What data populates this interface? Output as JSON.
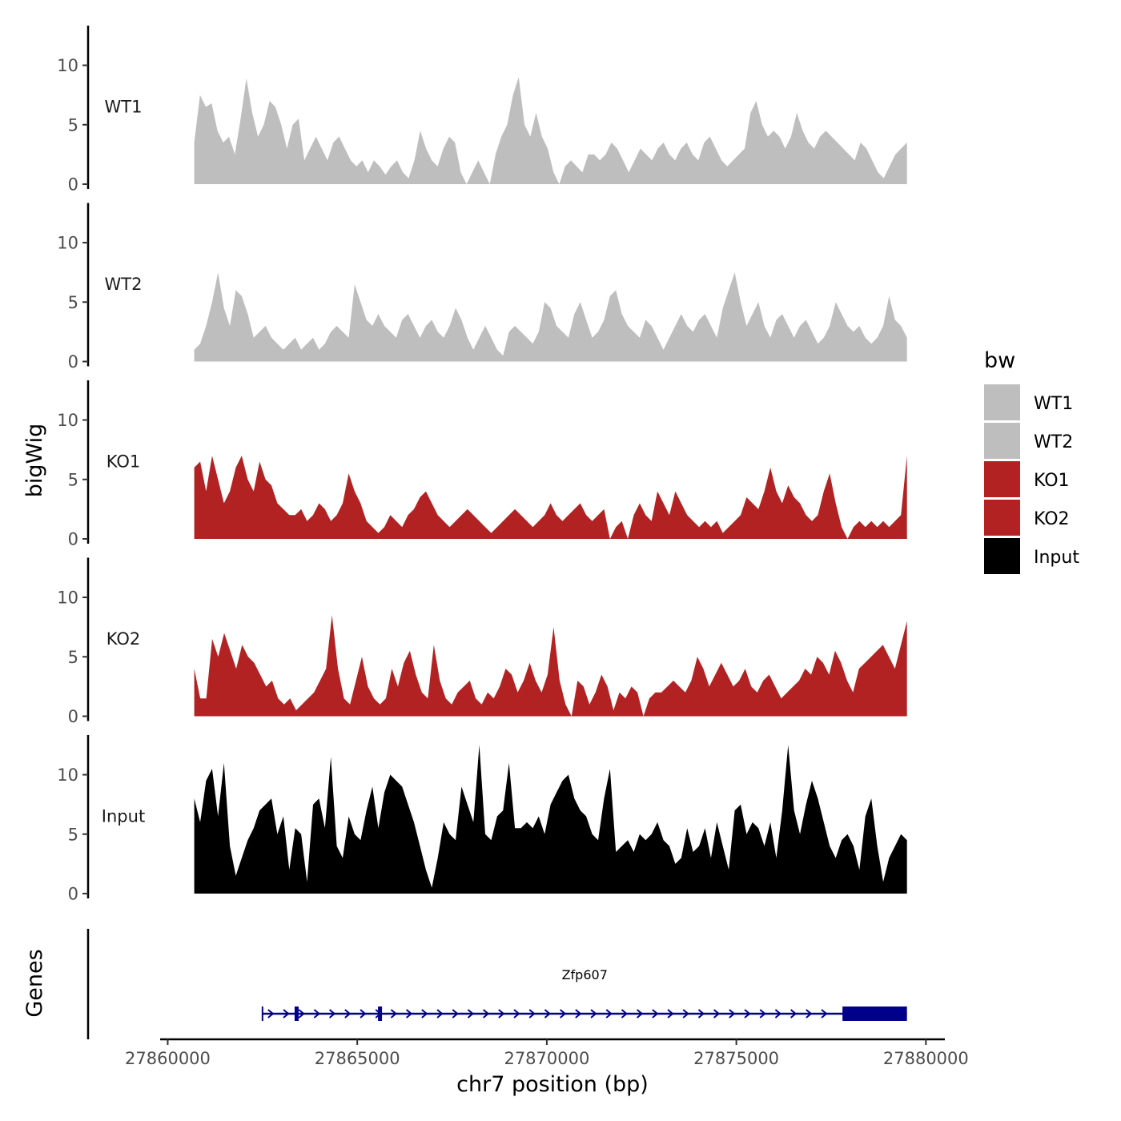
{
  "chart_data": {
    "type": "area",
    "title": "",
    "xlabel": "chr7 position (bp)",
    "ylabel": "bigWig",
    "genes_label": "Genes",
    "xlim": [
      27859800,
      27880500
    ],
    "xticks": [
      27860000,
      27865000,
      27870000,
      27875000,
      27880000
    ],
    "xtick_labels": [
      "27860000",
      "27865000",
      "27870000",
      "27875000",
      "27880000"
    ],
    "ylim": [
      0,
      13
    ],
    "yticks": [
      0,
      5,
      10
    ],
    "ytick_labels": [
      "0",
      "5",
      "10"
    ],
    "data_range": [
      27860700,
      27879500
    ],
    "legend": {
      "title": "bw",
      "position": "right",
      "entries": [
        {
          "label": "WT1",
          "color": "#BEBEBE"
        },
        {
          "label": "WT2",
          "color": "#BEBEBE"
        },
        {
          "label": "KO1",
          "color": "#B22222"
        },
        {
          "label": "KO2",
          "color": "#B22222"
        },
        {
          "label": "Input",
          "color": "#000000"
        }
      ]
    },
    "series": [
      {
        "name": "WT1",
        "color": "#BEBEBE",
        "values": [
          3.5,
          7.5,
          6.5,
          6.8,
          4.5,
          3.5,
          4.0,
          2.5,
          5.5,
          8.9,
          6.0,
          4.0,
          5.0,
          7.0,
          6.5,
          5.0,
          3.0,
          5.0,
          5.5,
          2.0,
          3.0,
          4.0,
          3.0,
          2.0,
          3.5,
          4.0,
          3.0,
          2.0,
          1.5,
          2.0,
          1.0,
          2.0,
          1.5,
          0.8,
          1.5,
          2.0,
          1.0,
          0.5,
          2.0,
          4.5,
          3.0,
          2.0,
          1.5,
          3.0,
          4.0,
          3.5,
          1.0,
          0.0,
          1.0,
          2.0,
          1.0,
          0.0,
          2.5,
          4.0,
          5.0,
          7.5,
          9.0,
          5.0,
          4.0,
          6.0,
          4.0,
          3.0,
          1.0,
          0.0,
          1.5,
          2.0,
          1.5,
          1.0,
          2.5,
          2.5,
          2.0,
          2.5,
          3.5,
          3.0,
          2.0,
          1.0,
          2.0,
          3.0,
          2.5,
          2.0,
          3.0,
          3.5,
          2.5,
          2.0,
          3.0,
          3.5,
          2.5,
          2.0,
          3.5,
          4.0,
          3.0,
          2.0,
          1.5,
          2.0,
          2.5,
          3.0,
          6.0,
          7.0,
          5.0,
          4.0,
          4.5,
          4.0,
          3.0,
          4.0,
          6.0,
          4.5,
          3.5,
          3.0,
          4.0,
          4.5,
          4.0,
          3.5,
          3.0,
          2.5,
          2.0,
          3.5,
          3.0,
          2.0,
          1.0,
          0.5,
          1.5,
          2.5,
          3.0,
          3.5
        ]
      },
      {
        "name": "WT2",
        "color": "#BEBEBE",
        "values": [
          1.0,
          1.5,
          3.0,
          5.0,
          7.5,
          4.5,
          3.0,
          6.0,
          5.5,
          4.0,
          2.0,
          2.5,
          3.0,
          2.0,
          1.5,
          1.0,
          1.5,
          2.0,
          1.0,
          1.5,
          2.0,
          1.0,
          1.5,
          2.5,
          3.0,
          2.5,
          2.0,
          6.5,
          5.0,
          3.5,
          3.0,
          4.0,
          3.0,
          2.5,
          2.0,
          3.5,
          4.0,
          3.0,
          2.0,
          3.0,
          3.5,
          2.5,
          2.0,
          3.0,
          4.5,
          3.5,
          2.0,
          1.0,
          2.0,
          3.0,
          2.0,
          1.0,
          0.5,
          2.5,
          3.0,
          2.5,
          2.0,
          1.5,
          2.5,
          5.0,
          4.5,
          3.0,
          2.5,
          2.0,
          4.0,
          5.0,
          3.5,
          2.0,
          2.5,
          3.5,
          5.5,
          6.0,
          4.0,
          3.0,
          2.5,
          2.0,
          3.5,
          3.0,
          2.0,
          1.0,
          2.0,
          3.0,
          4.0,
          3.0,
          2.5,
          3.5,
          4.0,
          3.0,
          2.0,
          4.5,
          6.0,
          7.5,
          5.0,
          3.0,
          4.0,
          5.0,
          3.0,
          2.0,
          3.5,
          4.0,
          3.0,
          2.0,
          3.0,
          3.5,
          2.5,
          1.5,
          2.0,
          3.0,
          5.0,
          4.0,
          3.0,
          2.5,
          3.0,
          2.0,
          1.5,
          2.0,
          3.0,
          5.5,
          3.5,
          3.0,
          2.0
        ]
      },
      {
        "name": "KO1",
        "color": "#B22222",
        "values": [
          6.0,
          6.5,
          4.0,
          7.0,
          5.0,
          3.0,
          4.0,
          6.0,
          7.0,
          5.0,
          4.0,
          6.5,
          5.0,
          4.5,
          3.0,
          2.5,
          2.0,
          2.0,
          2.5,
          1.5,
          2.0,
          3.0,
          2.5,
          1.5,
          2.0,
          3.0,
          5.5,
          4.0,
          3.0,
          1.5,
          1.0,
          0.5,
          1.0,
          2.0,
          1.5,
          1.0,
          2.0,
          2.5,
          3.5,
          4.0,
          3.0,
          2.0,
          1.5,
          1.0,
          1.5,
          2.0,
          2.5,
          2.0,
          1.5,
          1.0,
          0.5,
          1.0,
          1.5,
          2.0,
          2.5,
          2.0,
          1.5,
          1.0,
          1.5,
          2.0,
          3.0,
          2.0,
          1.5,
          2.0,
          2.5,
          3.0,
          2.0,
          1.5,
          2.0,
          2.5,
          0.0,
          1.0,
          1.5,
          0.0,
          2.0,
          3.0,
          2.0,
          1.5,
          4.0,
          3.0,
          2.0,
          4.0,
          3.0,
          2.0,
          1.5,
          1.0,
          1.5,
          1.0,
          1.5,
          0.5,
          1.0,
          1.5,
          2.0,
          3.5,
          3.0,
          2.5,
          4.0,
          6.0,
          4.0,
          3.0,
          4.5,
          3.5,
          3.0,
          2.0,
          1.5,
          2.0,
          4.0,
          5.5,
          3.0,
          1.0,
          0.0,
          1.0,
          1.5,
          1.0,
          1.5,
          1.0,
          1.5,
          1.0,
          1.5,
          2.0,
          7.0
        ]
      },
      {
        "name": "KO2",
        "color": "#B22222",
        "values": [
          4.0,
          1.5,
          1.5,
          6.5,
          5.0,
          7.0,
          5.5,
          4.0,
          6.0,
          5.0,
          4.5,
          3.5,
          2.5,
          3.0,
          1.5,
          1.0,
          1.5,
          0.5,
          1.0,
          1.5,
          2.0,
          3.0,
          4.0,
          8.5,
          4.0,
          1.5,
          1.0,
          3.0,
          5.0,
          2.5,
          1.5,
          1.0,
          1.5,
          4.0,
          2.5,
          4.5,
          5.5,
          3.5,
          2.0,
          1.5,
          6.0,
          3.0,
          1.5,
          1.0,
          2.0,
          2.5,
          3.0,
          1.5,
          1.0,
          2.0,
          1.5,
          2.5,
          4.0,
          3.5,
          2.0,
          3.0,
          4.5,
          3.0,
          2.0,
          3.5,
          7.5,
          3.0,
          1.0,
          0.0,
          3.0,
          2.5,
          1.0,
          2.0,
          3.5,
          2.5,
          0.5,
          2.0,
          1.5,
          2.5,
          2.0,
          0.0,
          1.5,
          2.0,
          2.0,
          2.5,
          3.0,
          2.5,
          2.0,
          3.0,
          5.0,
          4.0,
          2.5,
          3.5,
          4.5,
          3.5,
          2.5,
          3.0,
          4.0,
          2.5,
          2.0,
          3.0,
          3.5,
          2.5,
          1.5,
          2.0,
          2.5,
          3.0,
          4.0,
          3.5,
          5.0,
          4.5,
          3.5,
          5.5,
          4.5,
          3.0,
          2.0,
          4.0,
          4.5,
          5.0,
          5.5,
          6.0,
          5.0,
          4.0,
          6.0,
          8.0
        ]
      },
      {
        "name": "Input",
        "color": "#000000",
        "values": [
          8.0,
          6.0,
          9.5,
          10.5,
          6.5,
          11.0,
          4.0,
          1.5,
          3.0,
          4.5,
          5.5,
          7.0,
          7.5,
          8.0,
          5.0,
          6.5,
          2.0,
          5.5,
          5.0,
          1.0,
          7.5,
          8.0,
          5.5,
          11.5,
          4.0,
          3.0,
          6.5,
          5.0,
          4.5,
          7.0,
          9.0,
          5.5,
          8.5,
          10.0,
          9.5,
          9.0,
          7.5,
          6.0,
          4.0,
          2.0,
          0.5,
          3.0,
          6.0,
          5.0,
          4.5,
          9.0,
          7.5,
          6.0,
          12.5,
          5.0,
          4.5,
          6.5,
          7.0,
          11.0,
          5.5,
          5.5,
          6.0,
          5.5,
          6.5,
          5.0,
          7.5,
          8.5,
          9.5,
          10.0,
          8.0,
          7.0,
          6.5,
          5.0,
          4.5,
          8.0,
          10.5,
          3.5,
          4.0,
          4.5,
          3.5,
          5.0,
          4.5,
          5.0,
          6.0,
          4.5,
          4.0,
          2.5,
          3.0,
          5.5,
          3.5,
          4.0,
          5.5,
          3.0,
          6.0,
          4.0,
          2.0,
          7.0,
          7.5,
          5.0,
          6.0,
          5.5,
          4.0,
          6.0,
          3.0,
          7.0,
          12.5,
          7.0,
          5.0,
          7.5,
          9.5,
          8.0,
          6.0,
          4.0,
          3.0,
          4.5,
          5.0,
          4.0,
          2.0,
          6.5,
          8.0,
          4.0,
          1.0,
          3.0,
          4.0,
          5.0,
          4.5
        ]
      }
    ],
    "gene": {
      "name": "Zfp607",
      "color": "#00008B",
      "start": 27862500,
      "end": 27879500,
      "thick_start": 27877800,
      "thick_end": 27879500,
      "exons": [
        27863400,
        27865600
      ],
      "strand": "+"
    }
  }
}
